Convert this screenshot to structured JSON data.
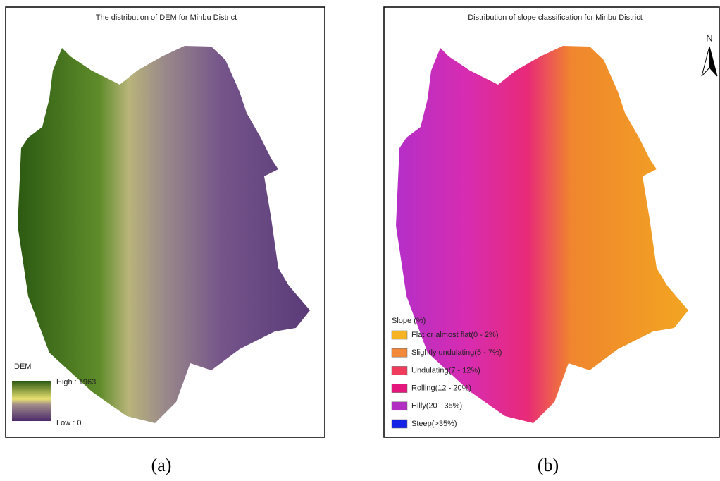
{
  "panels": [
    {
      "title": "The distribution of DEM for Minbu District",
      "legend": {
        "title": "DEM",
        "high": "High : 1963",
        "low": "Low : 0"
      },
      "caption": "(a)"
    },
    {
      "title": "Distribution of slope classification for Minbu District",
      "north": "N",
      "legend": {
        "title": "Slope (%)",
        "items": [
          {
            "label": "Flat or almost flat(0 - 2%)",
            "color": "#f6b425"
          },
          {
            "label": "Slightly undulating(5 - 7%)",
            "color": "#f2883a"
          },
          {
            "label": "Undulating(7 - 12%)",
            "color": "#ef3c5c"
          },
          {
            "label": "Rolling(12 - 20%)",
            "color": "#e3177c"
          },
          {
            "label": "Hilly(20 - 35%)",
            "color": "#b22ec2"
          },
          {
            "label": "Steep(>35%)",
            "color": "#1523e6"
          }
        ]
      },
      "caption": "(b)"
    }
  ]
}
